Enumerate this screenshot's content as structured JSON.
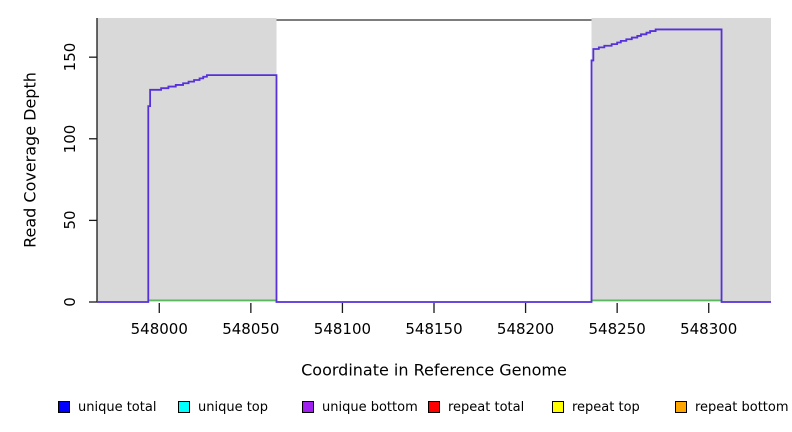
{
  "chart_data": {
    "type": "line",
    "title": "",
    "xlabel": "Coordinate in Reference Genome",
    "ylabel": "Read Coverage Depth",
    "xlim": [
      547966,
      548334
    ],
    "ylim": [
      0,
      174
    ],
    "x_ticks": [
      548000,
      548050,
      548100,
      548150,
      548200,
      548250,
      548300
    ],
    "y_ticks": [
      0,
      50,
      100,
      150
    ],
    "grid": false,
    "legend_position": "bottom",
    "shaded_regions": [
      {
        "name": "left-shaded-block",
        "from": 547966,
        "to": 548064,
        "color": "#d9d9d9"
      },
      {
        "name": "right-shaded-block",
        "from": 548236,
        "to": 548334,
        "color": "#d9d9d9"
      }
    ],
    "top_border_segment": {
      "from": 548064,
      "to": 548236,
      "color": "#7d7d7d"
    },
    "series": [
      {
        "name": "unique bottom coverage",
        "type": "step",
        "color": "#5630d8",
        "points": [
          [
            547966,
            0
          ],
          [
            547994,
            120
          ],
          [
            547995,
            130
          ],
          [
            548001,
            131
          ],
          [
            548005,
            132
          ],
          [
            548009,
            133
          ],
          [
            548013,
            134
          ],
          [
            548016,
            135
          ],
          [
            548019,
            136
          ],
          [
            548022,
            137
          ],
          [
            548024,
            138
          ],
          [
            548026,
            139
          ],
          [
            548064,
            0
          ],
          [
            548236,
            148
          ],
          [
            548237,
            155
          ],
          [
            548240,
            156
          ],
          [
            548243,
            157
          ],
          [
            548247,
            158
          ],
          [
            548250,
            159
          ],
          [
            548252,
            160
          ],
          [
            548255,
            161
          ],
          [
            548258,
            162
          ],
          [
            548261,
            163
          ],
          [
            548263,
            164
          ],
          [
            548266,
            165
          ],
          [
            548268,
            166
          ],
          [
            548271,
            167
          ],
          [
            548307,
            0
          ],
          [
            548334,
            0
          ]
        ]
      },
      {
        "name": "zero baseline",
        "type": "segments",
        "color": "#5cb860",
        "y": 0,
        "segments": [
          [
            547994,
            548064
          ],
          [
            548236,
            548307
          ]
        ]
      }
    ],
    "legend": [
      {
        "label": "unique total",
        "color": "#0000ff"
      },
      {
        "label": "unique top",
        "color": "#00ffff"
      },
      {
        "label": "unique bottom",
        "color": "#a020f0"
      },
      {
        "label": "repeat total",
        "color": "#ff0000"
      },
      {
        "label": "repeat top",
        "color": "#ffff00"
      },
      {
        "label": "repeat bottom",
        "color": "#ffa500"
      }
    ],
    "colors": {
      "axis": "#1a1a1a",
      "text": "#000000",
      "background": "#ffffff"
    }
  }
}
